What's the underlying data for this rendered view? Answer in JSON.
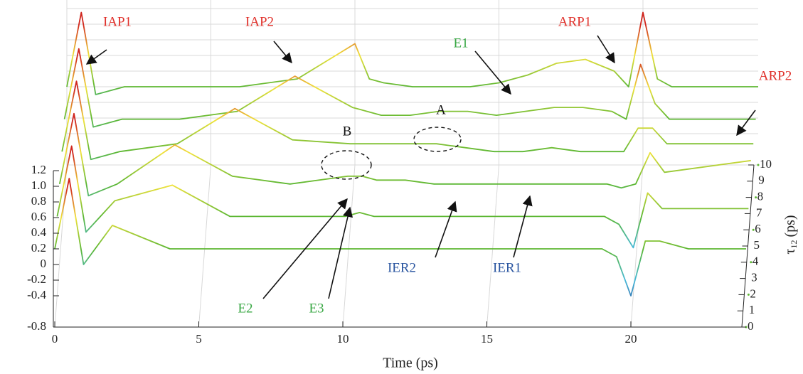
{
  "chart_data": {
    "type": "waterfall",
    "x_label": "Time (ps)",
    "depth_label": {
      "symbol": "τ",
      "subscript": "12",
      "unit": "(ps)"
    },
    "xlim": [
      0,
      24
    ],
    "xticks": [
      0,
      5,
      10,
      15,
      20
    ],
    "zlim": [
      -0.8,
      1.2
    ],
    "zticks": [
      {
        "value": 1.2,
        "label": "1.2"
      },
      {
        "value": 1,
        "label": "1.0"
      },
      0.8,
      0.6,
      0.4,
      0.2,
      0,
      -0.2,
      -0.4,
      -0.8
    ],
    "depthlim": [
      0,
      10
    ],
    "depthticks": [
      0,
      1,
      2,
      3,
      4,
      5,
      6,
      7,
      8,
      9,
      10
    ],
    "colormap": [
      "#2b4c9b",
      "#47b9d9",
      "#5cb732",
      "#f0e23a",
      "#d0241c"
    ],
    "clim": [
      -0.6,
      1.0
    ],
    "x": [
      0,
      0.5,
      1,
      2,
      4,
      6,
      8,
      10,
      10.5,
      11,
      12,
      13,
      14,
      15,
      16,
      17,
      18,
      19,
      19.5,
      20,
      20.5,
      21,
      22,
      24
    ],
    "series": [
      {
        "tau": 10,
        "values": [
          0.2,
          1.15,
          0.1,
          0.2,
          0.2,
          0.2,
          0.3,
          0.75,
          0.3,
          0.25,
          0.2,
          0.2,
          0.2,
          0.25,
          0.35,
          0.5,
          0.55,
          0.4,
          0.2,
          1.15,
          0.3,
          0.2,
          0.2,
          0.2
        ]
      },
      {
        "tau": 8,
        "values": [
          0.2,
          1.1,
          0.1,
          0.2,
          0.2,
          0.3,
          0.75,
          0.35,
          0.3,
          0.25,
          0.25,
          0.3,
          0.3,
          0.25,
          0.3,
          0.35,
          0.35,
          0.3,
          0.2,
          0.9,
          0.4,
          0.2,
          0.2,
          0.2
        ]
      },
      {
        "tau": 6,
        "values": [
          0.2,
          1.1,
          0.1,
          0.2,
          0.3,
          0.75,
          0.35,
          0.3,
          0.3,
          0.3,
          0.3,
          0.3,
          0.25,
          0.2,
          0.2,
          0.25,
          0.2,
          0.2,
          0.2,
          0.5,
          0.5,
          0.3,
          0.3,
          0.3
        ]
      },
      {
        "tau": 4,
        "values": [
          0.2,
          1.1,
          0.05,
          0.2,
          0.7,
          0.3,
          0.2,
          0.3,
          0.3,
          0.25,
          0.25,
          0.2,
          0.2,
          0.2,
          0.2,
          0.2,
          0.2,
          0.2,
          0.15,
          0.2,
          0.6,
          0.35,
          0.4,
          0.5
        ]
      },
      {
        "tau": 2,
        "values": [
          0.2,
          1.1,
          0.0,
          0.4,
          0.6,
          0.2,
          0.2,
          0.2,
          0.25,
          0.2,
          0.2,
          0.2,
          0.2,
          0.2,
          0.2,
          0.2,
          0.2,
          0.2,
          0.1,
          -0.2,
          0.5,
          0.3,
          0.3,
          0.3
        ]
      },
      {
        "tau": 0,
        "values": [
          0.2,
          1.1,
          0.0,
          0.5,
          0.2,
          0.2,
          0.2,
          0.2,
          0.2,
          0.2,
          0.2,
          0.2,
          0.2,
          0.2,
          0.2,
          0.2,
          0.2,
          0.2,
          0.1,
          -0.4,
          0.3,
          0.3,
          0.2,
          0.2
        ]
      }
    ],
    "annotations": [
      {
        "text": "IAP1",
        "color": "#e0302a"
      },
      {
        "text": "IAP2",
        "color": "#e0302a"
      },
      {
        "text": "ARP1",
        "color": "#e0302a"
      },
      {
        "text": "ARP2",
        "color": "#e0302a"
      },
      {
        "text": "E1",
        "color": "#3aa845"
      },
      {
        "text": "E2",
        "color": "#3aa845"
      },
      {
        "text": "E3",
        "color": "#3aa845"
      },
      {
        "text": "IER2",
        "color": "#2a55a0"
      },
      {
        "text": "IER1",
        "color": "#2a55a0"
      },
      {
        "text": "A",
        "color": "#111111"
      },
      {
        "text": "B",
        "color": "#111111"
      }
    ]
  }
}
